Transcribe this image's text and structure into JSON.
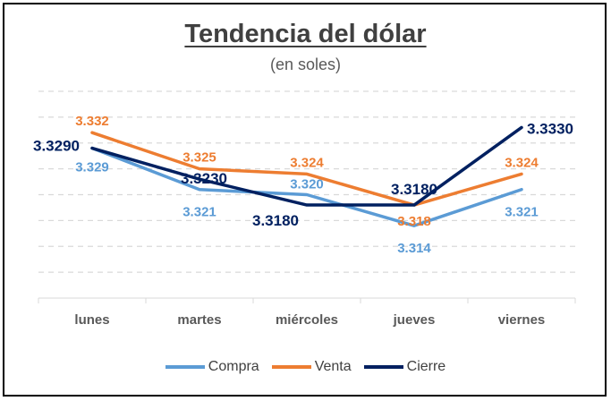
{
  "chart_data": {
    "type": "line",
    "title": "Tendencia del dólar",
    "subtitle": "(en soles)",
    "categories": [
      "lunes",
      "martes",
      "miércoles",
      "jueves",
      "viernes"
    ],
    "ylim": [
      3.3,
      3.34
    ],
    "grid": true,
    "legend_position": "bottom",
    "series": [
      {
        "name": "Compra",
        "color": "#5b9bd5",
        "values": [
          3.329,
          3.321,
          3.32,
          3.314,
          3.321
        ],
        "labels": [
          "3.329",
          "3.321",
          "3.320",
          "3.314",
          "3.321"
        ]
      },
      {
        "name": "Venta",
        "color": "#ed7d31",
        "values": [
          3.332,
          3.325,
          3.324,
          3.318,
          3.324
        ],
        "labels": [
          "3.332",
          "3.325",
          "3.324",
          "3.318",
          "3.324"
        ]
      },
      {
        "name": "Cierre",
        "color": "#002060",
        "values": [
          3.329,
          3.323,
          3.318,
          3.318,
          3.333
        ],
        "labels": [
          "3.3290",
          "3.3230",
          "3.3180",
          "3.3180",
          "3.3330"
        ]
      }
    ]
  }
}
